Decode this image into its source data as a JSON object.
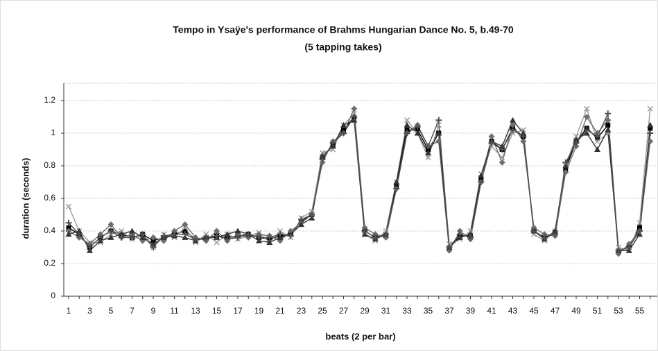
{
  "chart_data": {
    "type": "line",
    "title": "Tempo in Ysaÿe's performance of Brahms Hungarian Dance No. 5, b.49-70",
    "subtitle": "(5 tapping takes)",
    "x_label": "beats (2 per bar)",
    "y_label": "duration (seconds)",
    "categories": [
      "1",
      null,
      "3",
      null,
      "5",
      null,
      "7",
      null,
      "9",
      null,
      "11",
      null,
      "13",
      null,
      "15",
      null,
      "17",
      null,
      "19",
      null,
      "21",
      null,
      "23",
      null,
      "25",
      null,
      "27",
      null,
      "29",
      null,
      "31",
      null,
      "33",
      null,
      "35",
      null,
      "37",
      null,
      "39",
      null,
      "41",
      null,
      "43",
      null,
      "45",
      null,
      "47",
      null,
      "49",
      null,
      "51",
      null,
      "53",
      null,
      "55",
      null
    ],
    "ylim": [
      0,
      1.2
    ],
    "yticks": [
      0,
      0.2,
      0.4,
      0.6,
      0.8,
      1,
      1.2
    ],
    "grid": true,
    "series": [
      {
        "color": "#000000",
        "values": [
          0.42,
          0.38,
          0.3,
          0.36,
          0.4,
          0.38,
          0.36,
          0.38,
          0.34,
          0.36,
          0.38,
          0.4,
          0.35,
          0.36,
          0.37,
          0.36,
          0.37,
          0.38,
          0.36,
          0.35,
          0.37,
          0.38,
          0.46,
          0.5,
          0.85,
          0.93,
          1.02,
          1.1,
          0.4,
          0.36,
          0.38,
          0.68,
          1.02,
          1.02,
          0.9,
          1.0,
          0.3,
          0.37,
          0.37,
          0.72,
          0.95,
          0.9,
          1.03,
          0.98,
          0.4,
          0.36,
          0.39,
          0.78,
          0.95,
          1.03,
          0.97,
          1.05,
          0.28,
          0.3,
          0.42,
          1.03
        ]
      },
      {
        "color": "#9a9a9a",
        "values": [
          0.55,
          0.4,
          0.33,
          0.33,
          0.38,
          0.4,
          0.35,
          0.37,
          0.3,
          0.38,
          0.36,
          0.42,
          0.33,
          0.38,
          0.33,
          0.38,
          0.35,
          0.37,
          0.39,
          0.33,
          0.4,
          0.36,
          0.48,
          0.52,
          0.88,
          0.9,
          1.05,
          1.12,
          0.38,
          0.34,
          0.4,
          0.7,
          1.08,
          1.0,
          0.85,
          1.05,
          0.32,
          0.35,
          0.4,
          0.75,
          0.92,
          0.85,
          1.0,
          1.02,
          0.38,
          0.34,
          0.4,
          0.8,
          0.98,
          1.15,
          0.95,
          1.0,
          0.3,
          0.28,
          0.45,
          1.15
        ]
      },
      {
        "color": "#6e6e6e",
        "values": [
          0.4,
          0.36,
          0.32,
          0.38,
          0.44,
          0.36,
          0.38,
          0.34,
          0.36,
          0.34,
          0.4,
          0.44,
          0.36,
          0.34,
          0.4,
          0.34,
          0.38,
          0.36,
          0.38,
          0.37,
          0.34,
          0.4,
          0.45,
          0.5,
          0.82,
          0.95,
          1.0,
          1.15,
          0.42,
          0.38,
          0.36,
          0.66,
          1.0,
          1.05,
          0.92,
          0.95,
          0.28,
          0.4,
          0.35,
          0.7,
          0.98,
          0.82,
          1.05,
          0.95,
          0.42,
          0.38,
          0.37,
          0.76,
          0.92,
          1.1,
          1.0,
          1.08,
          0.26,
          0.32,
          0.4,
          0.95
        ]
      },
      {
        "color": "#333333",
        "values": [
          0.38,
          0.4,
          0.28,
          0.34,
          0.36,
          0.38,
          0.4,
          0.36,
          0.32,
          0.36,
          0.37,
          0.36,
          0.34,
          0.36,
          0.36,
          0.38,
          0.4,
          0.38,
          0.34,
          0.33,
          0.36,
          0.38,
          0.44,
          0.48,
          0.86,
          0.92,
          1.05,
          1.08,
          0.38,
          0.35,
          0.38,
          0.7,
          1.05,
          1.0,
          0.88,
          1.0,
          0.3,
          0.36,
          0.38,
          0.74,
          0.95,
          0.92,
          1.08,
          1.0,
          0.4,
          0.35,
          0.4,
          0.8,
          0.96,
          1.0,
          0.9,
          1.02,
          0.28,
          0.28,
          0.38,
          1.05
        ]
      },
      {
        "color": "#505050",
        "values": [
          0.45,
          0.38,
          0.3,
          0.36,
          0.4,
          0.36,
          0.36,
          0.38,
          0.3,
          0.37,
          0.38,
          0.38,
          0.35,
          0.35,
          0.37,
          0.35,
          0.36,
          0.38,
          0.36,
          0.36,
          0.38,
          0.37,
          0.47,
          0.5,
          0.84,
          0.94,
          1.0,
          1.1,
          0.4,
          0.36,
          0.38,
          0.66,
          1.0,
          1.04,
          0.92,
          1.08,
          0.3,
          0.38,
          0.36,
          0.7,
          0.94,
          0.9,
          1.02,
          0.98,
          0.4,
          0.36,
          0.38,
          0.82,
          0.94,
          1.02,
          0.98,
          1.12,
          0.28,
          0.3,
          0.4,
          1.0
        ]
      }
    ]
  }
}
